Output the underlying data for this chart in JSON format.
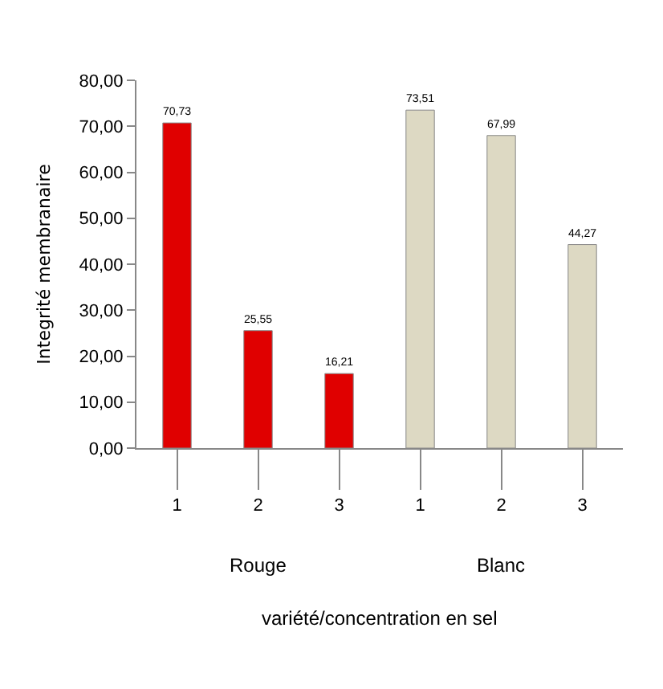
{
  "chart_data": {
    "type": "bar",
    "categories": [
      "1",
      "2",
      "3",
      "1",
      "2",
      "3"
    ],
    "values": [
      70.73,
      25.55,
      16.21,
      73.51,
      67.99,
      44.27
    ],
    "value_labels": [
      "70,73",
      "25,55",
      "16,21",
      "73,51",
      "67,99",
      "44,27"
    ],
    "colors": [
      "#e00000",
      "#e00000",
      "#e00000",
      "#ddd9c3",
      "#ddd9c3",
      "#ddd9c3"
    ],
    "ylabel": "Integrité membranaire",
    "xlabel": "variété/concentration en sel",
    "annotations": [
      "Rouge",
      "Blanc"
    ],
    "ylim": [
      0,
      80
    ],
    "yticks": [
      {
        "value": 0,
        "label": "0,00"
      },
      {
        "value": 10,
        "label": "10,00"
      },
      {
        "value": 20,
        "label": "20,00"
      },
      {
        "value": 30,
        "label": "30,00"
      },
      {
        "value": 40,
        "label": "40,00"
      },
      {
        "value": 50,
        "label": "50,00"
      },
      {
        "value": 60,
        "label": "60,00"
      },
      {
        "value": 70,
        "label": "70,00"
      },
      {
        "value": 80,
        "label": "80,00"
      }
    ]
  }
}
